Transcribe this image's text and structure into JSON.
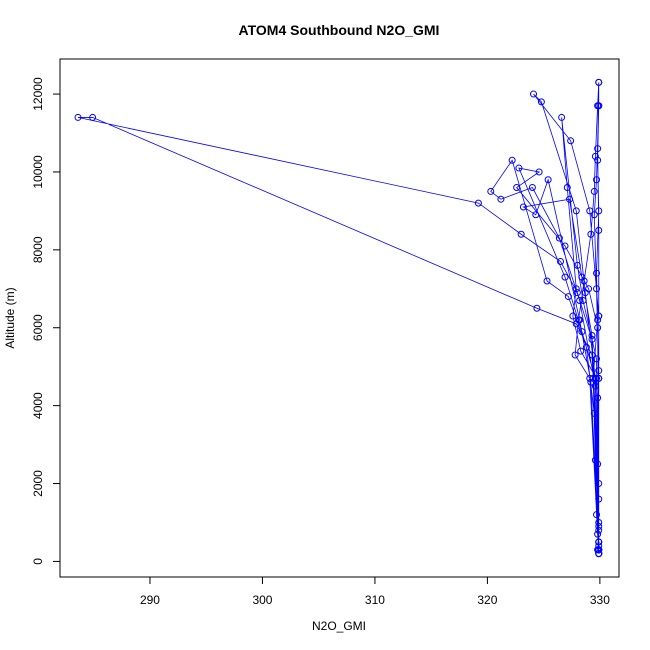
{
  "chart_data": {
    "type": "scatter",
    "title": "ATOM4 Southbound N2O_GMI",
    "xlabel": "N2O_GMI",
    "ylabel": "Altitude (m)",
    "xlim": [
      282,
      331.7
    ],
    "ylim": [
      -400,
      12900
    ],
    "xticks": [
      290,
      300,
      310,
      320,
      330
    ],
    "yticks": [
      0,
      2000,
      4000,
      6000,
      8000,
      10000,
      12000
    ],
    "grid": false,
    "legend": "none",
    "color": "#0000ff",
    "series": [
      {
        "marker": "open-circle",
        "connected": true,
        "points": [
          [
            329.9,
            200
          ],
          [
            329.8,
            300
          ],
          [
            329.9,
            500
          ],
          [
            329.7,
            1200
          ],
          [
            329.6,
            2600
          ],
          [
            329.4,
            4700
          ],
          [
            329.8,
            6200
          ],
          [
            329.7,
            7400
          ],
          [
            329.9,
            9000
          ],
          [
            329.8,
            10300
          ],
          [
            329.9,
            11700
          ],
          [
            329.9,
            12300
          ],
          [
            329.8,
            11700
          ],
          [
            329.6,
            10400
          ],
          [
            329.5,
            9500
          ],
          [
            329.2,
            8400
          ],
          [
            328.6,
            7200
          ],
          [
            328.1,
            6200
          ],
          [
            327.8,
            5300
          ],
          [
            329.1,
            4700
          ],
          [
            329.8,
            700
          ],
          [
            329.9,
            300
          ],
          [
            329.7,
            4700
          ],
          [
            328.3,
            5400
          ],
          [
            327.6,
            6300
          ],
          [
            327.9,
            7000
          ],
          [
            327.1,
            9600
          ],
          [
            326.6,
            11400
          ],
          [
            328.0,
            7600
          ],
          [
            328.5,
            6700
          ],
          [
            329.7,
            5200
          ],
          [
            329.9,
            900
          ],
          [
            329.9,
            200
          ],
          [
            329.9,
            400
          ],
          [
            329.2,
            4600
          ],
          [
            328.2,
            6200
          ],
          [
            325.4,
            9800
          ],
          [
            324.3,
            8900
          ],
          [
            323.2,
            9100
          ],
          [
            327.3,
            9300
          ],
          [
            328.4,
            7300
          ],
          [
            329.3,
            5800
          ],
          [
            329.9,
            1600
          ],
          [
            329.9,
            300
          ],
          [
            329.9,
            500
          ],
          [
            329.5,
            3800
          ],
          [
            328.8,
            5500
          ],
          [
            327.2,
            6800
          ],
          [
            325.3,
            7200
          ],
          [
            322.2,
            10300
          ],
          [
            320.3,
            9500
          ],
          [
            321.2,
            9300
          ],
          [
            324.0,
            9600
          ],
          [
            326.4,
            8300
          ],
          [
            328.2,
            6700
          ],
          [
            329.6,
            4500
          ],
          [
            329.9,
            800
          ],
          [
            329.9,
            200
          ],
          [
            329.8,
            2500
          ],
          [
            329.3,
            5300
          ],
          [
            327.9,
            6100
          ],
          [
            324.4,
            6500
          ],
          [
            284.9,
            11400
          ],
          [
            283.6,
            11400
          ],
          [
            319.2,
            9200
          ],
          [
            323.0,
            8400
          ],
          [
            326.5,
            7700
          ],
          [
            328.0,
            6900
          ],
          [
            329.3,
            5700
          ],
          [
            329.9,
            1000
          ],
          [
            329.9,
            300
          ],
          [
            329.8,
            4200
          ],
          [
            328.7,
            6900
          ],
          [
            327.9,
            9000
          ],
          [
            324.8,
            11800
          ],
          [
            324.1,
            12000
          ],
          [
            327.4,
            10800
          ],
          [
            329.1,
            9000
          ],
          [
            329.9,
            6300
          ],
          [
            329.9,
            4900
          ],
          [
            329.9,
            500
          ],
          [
            329.9,
            200
          ],
          [
            329.6,
            4700
          ],
          [
            328.4,
            5900
          ],
          [
            326.9,
            7300
          ],
          [
            322.8,
            10100
          ],
          [
            324.6,
            10000
          ],
          [
            322.6,
            9600
          ],
          [
            326.9,
            8100
          ],
          [
            329.0,
            7000
          ],
          [
            329.8,
            6000
          ],
          [
            329.9,
            2000
          ],
          [
            329.9,
            300
          ],
          [
            329.9,
            4700
          ],
          [
            329.7,
            7000
          ],
          [
            329.5,
            8900
          ],
          [
            329.7,
            9800
          ],
          [
            329.9,
            11700
          ],
          [
            329.9,
            12300
          ],
          [
            329.8,
            10600
          ],
          [
            329.9,
            8500
          ],
          [
            329.9,
            6300
          ],
          [
            329.9,
            4700
          ],
          [
            329.9,
            300
          ]
        ]
      }
    ]
  }
}
